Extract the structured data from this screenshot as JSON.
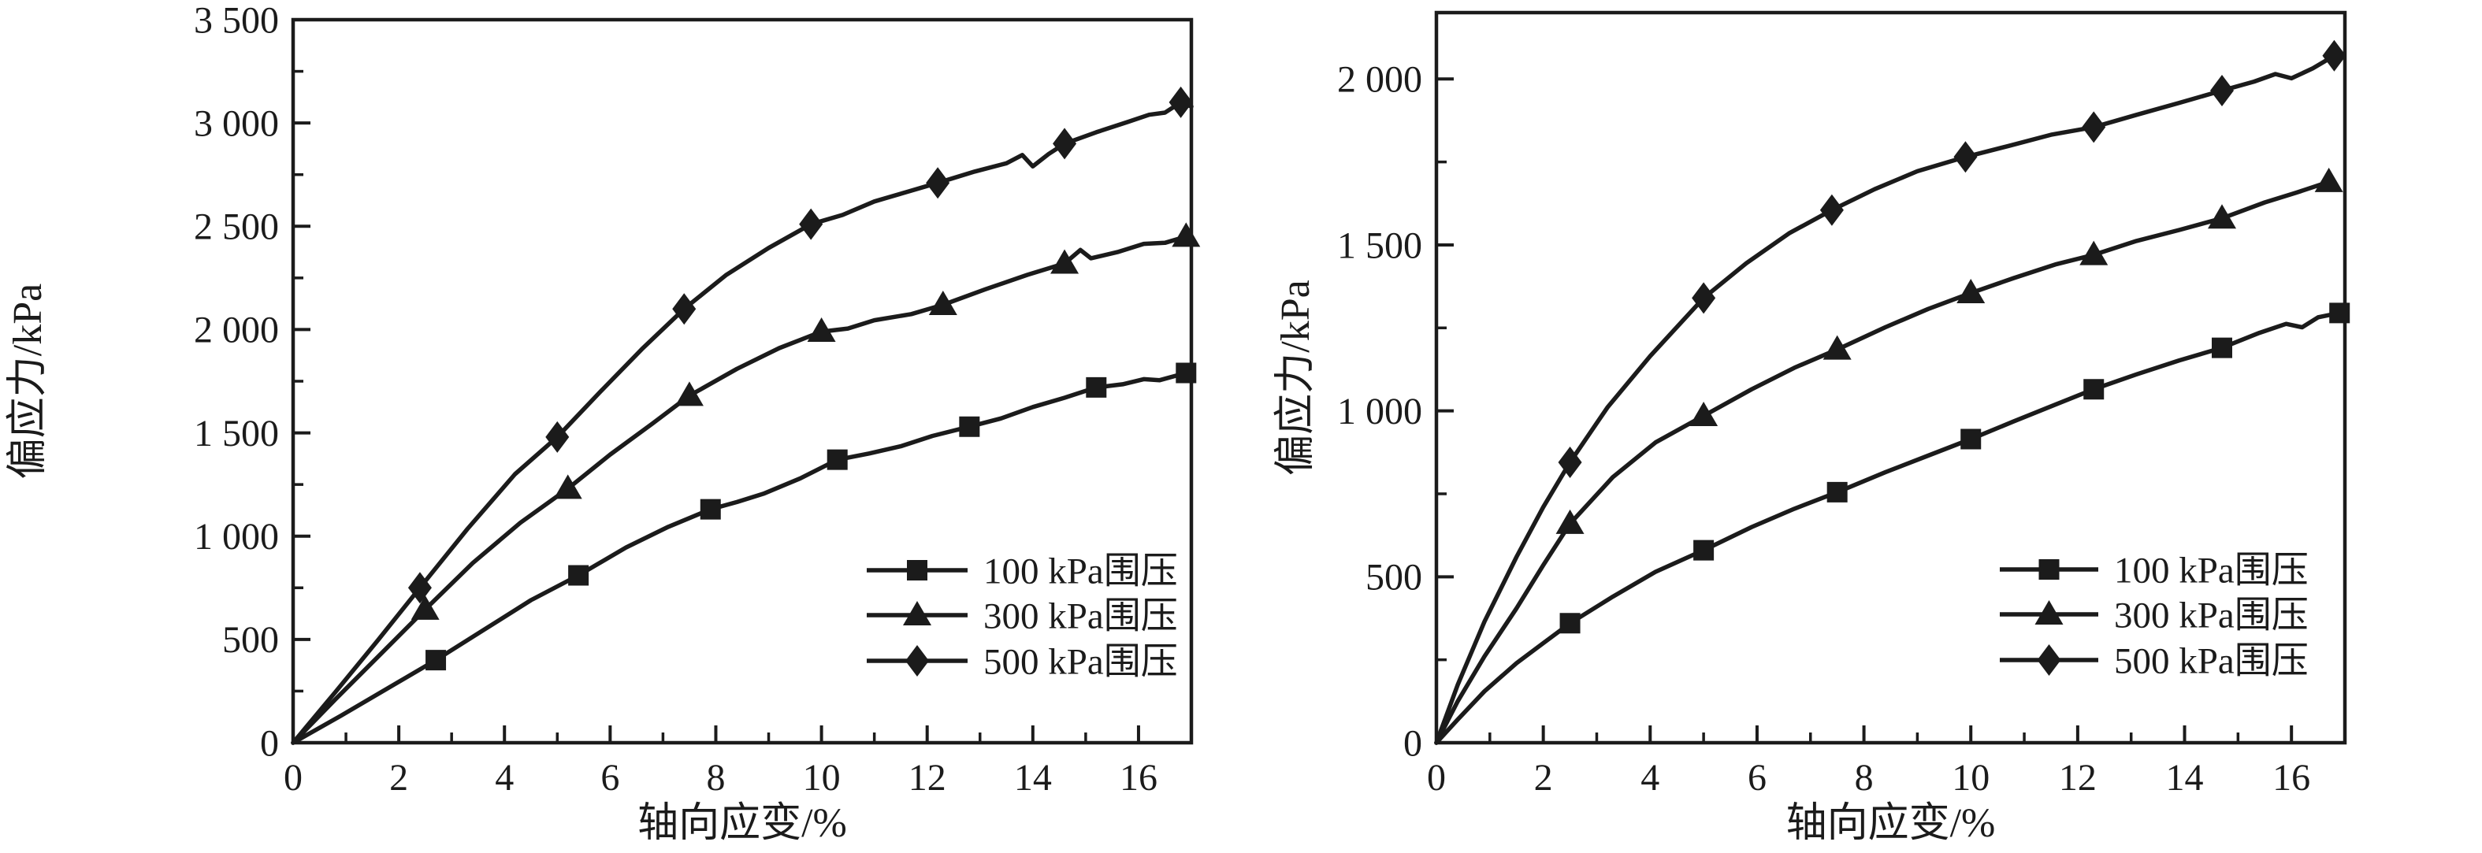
{
  "page": {
    "background": "#ffffff",
    "line_color": "#1b1b1b"
  },
  "chart_data": [
    {
      "id": "chart-a",
      "type": "line",
      "title": "",
      "xlabel": "轴向应变/%",
      "ylabel": "偏应力/kPa",
      "xlim": [
        0,
        17
      ],
      "ylim": [
        0,
        3500
      ],
      "grid": false,
      "legend_position": "inside-lower-right",
      "x_ticks": [
        {
          "v": 0,
          "label": "0"
        },
        {
          "v": 2,
          "label": "2"
        },
        {
          "v": 4,
          "label": "4"
        },
        {
          "v": 6,
          "label": "6"
        },
        {
          "v": 8,
          "label": "8"
        },
        {
          "v": 10,
          "label": "10"
        },
        {
          "v": 12,
          "label": "12"
        },
        {
          "v": 14,
          "label": "14"
        },
        {
          "v": 16,
          "label": "16"
        }
      ],
      "x_minor_ticks": [
        1,
        3,
        5,
        7,
        9,
        11,
        13,
        15,
        17
      ],
      "y_ticks": [
        {
          "v": 0,
          "label": "0"
        },
        {
          "v": 500,
          "label": "500"
        },
        {
          "v": 1000,
          "label": "1 000"
        },
        {
          "v": 1500,
          "label": "1 500"
        },
        {
          "v": 2000,
          "label": "2 000"
        },
        {
          "v": 2500,
          "label": "2 500"
        },
        {
          "v": 3000,
          "label": "3 000"
        },
        {
          "v": 3500,
          "label": "3 500"
        }
      ],
      "y_minor_ticks": [
        250,
        750,
        1250,
        1750,
        2250,
        2750,
        3250
      ],
      "series": [
        {
          "name": "100 kPa围压",
          "marker": "square",
          "markers_xy": [
            [
              2.7,
              400
            ],
            [
              5.4,
              810
            ],
            [
              7.9,
              1130
            ],
            [
              10.3,
              1370
            ],
            [
              12.8,
              1530
            ],
            [
              15.2,
              1720
            ],
            [
              16.9,
              1790
            ]
          ],
          "line_xy": [
            [
              0,
              0
            ],
            [
              0.9,
              130
            ],
            [
              1.8,
              265
            ],
            [
              2.7,
              400
            ],
            [
              3.6,
              545
            ],
            [
              4.5,
              690
            ],
            [
              5.4,
              810
            ],
            [
              6.3,
              945
            ],
            [
              7.1,
              1045
            ],
            [
              7.9,
              1130
            ],
            [
              8.4,
              1165
            ],
            [
              8.9,
              1205
            ],
            [
              9.6,
              1280
            ],
            [
              10.3,
              1370
            ],
            [
              10.9,
              1400
            ],
            [
              11.5,
              1435
            ],
            [
              12.1,
              1485
            ],
            [
              12.8,
              1530
            ],
            [
              13.4,
              1570
            ],
            [
              14.0,
              1625
            ],
            [
              14.6,
              1670
            ],
            [
              15.2,
              1720
            ],
            [
              15.7,
              1735
            ],
            [
              16.1,
              1760
            ],
            [
              16.4,
              1755
            ],
            [
              16.9,
              1790
            ]
          ]
        },
        {
          "name": "300 kPa围压",
          "marker": "triangle",
          "markers_xy": [
            [
              2.5,
              645
            ],
            [
              5.2,
              1230
            ],
            [
              7.5,
              1680
            ],
            [
              10.0,
              1990
            ],
            [
              12.3,
              2120
            ],
            [
              14.6,
              2320
            ],
            [
              16.9,
              2450
            ]
          ],
          "line_xy": [
            [
              0,
              0
            ],
            [
              0.8,
              210
            ],
            [
              1.7,
              440
            ],
            [
              2.5,
              645
            ],
            [
              3.4,
              870
            ],
            [
              4.3,
              1065
            ],
            [
              5.2,
              1230
            ],
            [
              6.0,
              1395
            ],
            [
              6.8,
              1545
            ],
            [
              7.5,
              1680
            ],
            [
              8.4,
              1810
            ],
            [
              9.2,
              1910
            ],
            [
              10.0,
              1990
            ],
            [
              10.5,
              2005
            ],
            [
              11.0,
              2045
            ],
            [
              11.7,
              2075
            ],
            [
              12.3,
              2120
            ],
            [
              13.1,
              2195
            ],
            [
              13.9,
              2265
            ],
            [
              14.6,
              2320
            ],
            [
              14.9,
              2385
            ],
            [
              15.1,
              2345
            ],
            [
              15.6,
              2375
            ],
            [
              16.1,
              2415
            ],
            [
              16.5,
              2420
            ],
            [
              16.9,
              2450
            ]
          ]
        },
        {
          "name": "500 kPa围压",
          "marker": "diamond",
          "markers_xy": [
            [
              2.4,
              750
            ],
            [
              5.0,
              1480
            ],
            [
              7.4,
              2100
            ],
            [
              9.8,
              2510
            ],
            [
              12.2,
              2710
            ],
            [
              14.6,
              2900
            ],
            [
              16.8,
              3100
            ]
          ],
          "line_xy": [
            [
              0,
              0
            ],
            [
              0.8,
              245
            ],
            [
              1.6,
              495
            ],
            [
              2.4,
              750
            ],
            [
              3.3,
              1035
            ],
            [
              4.2,
              1300
            ],
            [
              5.0,
              1480
            ],
            [
              5.8,
              1695
            ],
            [
              6.6,
              1905
            ],
            [
              7.4,
              2100
            ],
            [
              8.2,
              2265
            ],
            [
              9.0,
              2395
            ],
            [
              9.8,
              2510
            ],
            [
              10.4,
              2555
            ],
            [
              11.0,
              2620
            ],
            [
              11.6,
              2665
            ],
            [
              12.2,
              2710
            ],
            [
              12.9,
              2765
            ],
            [
              13.5,
              2805
            ],
            [
              13.8,
              2845
            ],
            [
              14.0,
              2790
            ],
            [
              14.3,
              2850
            ],
            [
              14.6,
              2900
            ],
            [
              15.2,
              2955
            ],
            [
              15.8,
              3005
            ],
            [
              16.2,
              3040
            ],
            [
              16.5,
              3050
            ],
            [
              16.8,
              3100
            ],
            [
              17.0,
              3080
            ]
          ]
        }
      ]
    },
    {
      "id": "chart-b",
      "type": "line",
      "title": "",
      "xlabel": "轴向应变/%",
      "ylabel": "偏应力/kPa",
      "xlim": [
        0,
        17
      ],
      "ylim": [
        0,
        2200
      ],
      "grid": false,
      "legend_position": "inside-lower-right",
      "x_ticks": [
        {
          "v": 0,
          "label": "0"
        },
        {
          "v": 2,
          "label": "2"
        },
        {
          "v": 4,
          "label": "4"
        },
        {
          "v": 6,
          "label": "6"
        },
        {
          "v": 8,
          "label": "8"
        },
        {
          "v": 10,
          "label": "10"
        },
        {
          "v": 12,
          "label": "12"
        },
        {
          "v": 14,
          "label": "14"
        },
        {
          "v": 16,
          "label": "16"
        }
      ],
      "x_minor_ticks": [
        1,
        3,
        5,
        7,
        9,
        11,
        13,
        15,
        17
      ],
      "y_ticks": [
        {
          "v": 0,
          "label": "0"
        },
        {
          "v": 500,
          "label": "500"
        },
        {
          "v": 1000,
          "label": "1 000"
        },
        {
          "v": 1500,
          "label": "1 500"
        },
        {
          "v": 2000,
          "label": "2 000"
        }
      ],
      "y_minor_ticks": [
        250,
        750,
        1250,
        1750
      ],
      "series": [
        {
          "name": "100 kPa围压",
          "marker": "square",
          "markers_xy": [
            [
              2.5,
              360
            ],
            [
              5.0,
              580
            ],
            [
              7.5,
              755
            ],
            [
              10.0,
              915
            ],
            [
              12.3,
              1065
            ],
            [
              14.7,
              1190
            ],
            [
              16.9,
              1295
            ]
          ],
          "line_xy": [
            [
              0,
              0
            ],
            [
              0.4,
              70
            ],
            [
              0.9,
              155
            ],
            [
              1.5,
              240
            ],
            [
              2.0,
              300
            ],
            [
              2.5,
              360
            ],
            [
              3.3,
              440
            ],
            [
              4.1,
              515
            ],
            [
              5.0,
              580
            ],
            [
              5.9,
              650
            ],
            [
              6.7,
              705
            ],
            [
              7.5,
              755
            ],
            [
              8.4,
              815
            ],
            [
              9.2,
              865
            ],
            [
              10.0,
              915
            ],
            [
              10.8,
              968
            ],
            [
              11.6,
              1020
            ],
            [
              12.3,
              1065
            ],
            [
              13.1,
              1110
            ],
            [
              13.9,
              1152
            ],
            [
              14.7,
              1190
            ],
            [
              15.4,
              1235
            ],
            [
              15.9,
              1262
            ],
            [
              16.2,
              1252
            ],
            [
              16.5,
              1282
            ],
            [
              16.9,
              1295
            ]
          ]
        },
        {
          "name": "300 kPa围压",
          "marker": "triangle",
          "markers_xy": [
            [
              2.5,
              660
            ],
            [
              5.0,
              985
            ],
            [
              7.5,
              1185
            ],
            [
              10.0,
              1355
            ],
            [
              12.3,
              1470
            ],
            [
              14.7,
              1580
            ],
            [
              16.7,
              1690
            ]
          ],
          "line_xy": [
            [
              0,
              0
            ],
            [
              0.4,
              125
            ],
            [
              0.9,
              260
            ],
            [
              1.5,
              405
            ],
            [
              2.0,
              535
            ],
            [
              2.5,
              660
            ],
            [
              3.3,
              800
            ],
            [
              4.1,
              905
            ],
            [
              5.0,
              985
            ],
            [
              5.9,
              1065
            ],
            [
              6.7,
              1130
            ],
            [
              7.5,
              1185
            ],
            [
              8.4,
              1252
            ],
            [
              9.2,
              1307
            ],
            [
              10.0,
              1355
            ],
            [
              10.8,
              1400
            ],
            [
              11.6,
              1442
            ],
            [
              12.3,
              1470
            ],
            [
              13.1,
              1512
            ],
            [
              13.9,
              1545
            ],
            [
              14.7,
              1580
            ],
            [
              15.5,
              1628
            ],
            [
              16.1,
              1658
            ],
            [
              16.7,
              1690
            ]
          ]
        },
        {
          "name": "500 kPa围压",
          "marker": "diamond",
          "markers_xy": [
            [
              2.5,
              845
            ],
            [
              5.0,
              1340
            ],
            [
              7.4,
              1605
            ],
            [
              9.9,
              1765
            ],
            [
              12.3,
              1855
            ],
            [
              14.7,
              1965
            ],
            [
              16.8,
              2070
            ]
          ],
          "line_xy": [
            [
              0,
              0
            ],
            [
              0.4,
              175
            ],
            [
              0.9,
              365
            ],
            [
              1.5,
              560
            ],
            [
              2.0,
              710
            ],
            [
              2.5,
              845
            ],
            [
              3.2,
              1010
            ],
            [
              4.0,
              1165
            ],
            [
              5.0,
              1340
            ],
            [
              5.8,
              1445
            ],
            [
              6.6,
              1535
            ],
            [
              7.4,
              1605
            ],
            [
              8.2,
              1668
            ],
            [
              9.0,
              1722
            ],
            [
              9.9,
              1765
            ],
            [
              10.7,
              1798
            ],
            [
              11.5,
              1832
            ],
            [
              12.3,
              1855
            ],
            [
              13.1,
              1892
            ],
            [
              13.9,
              1928
            ],
            [
              14.7,
              1965
            ],
            [
              15.3,
              1992
            ],
            [
              15.7,
              2015
            ],
            [
              16.0,
              2002
            ],
            [
              16.4,
              2032
            ],
            [
              16.8,
              2070
            ]
          ]
        }
      ]
    }
  ]
}
